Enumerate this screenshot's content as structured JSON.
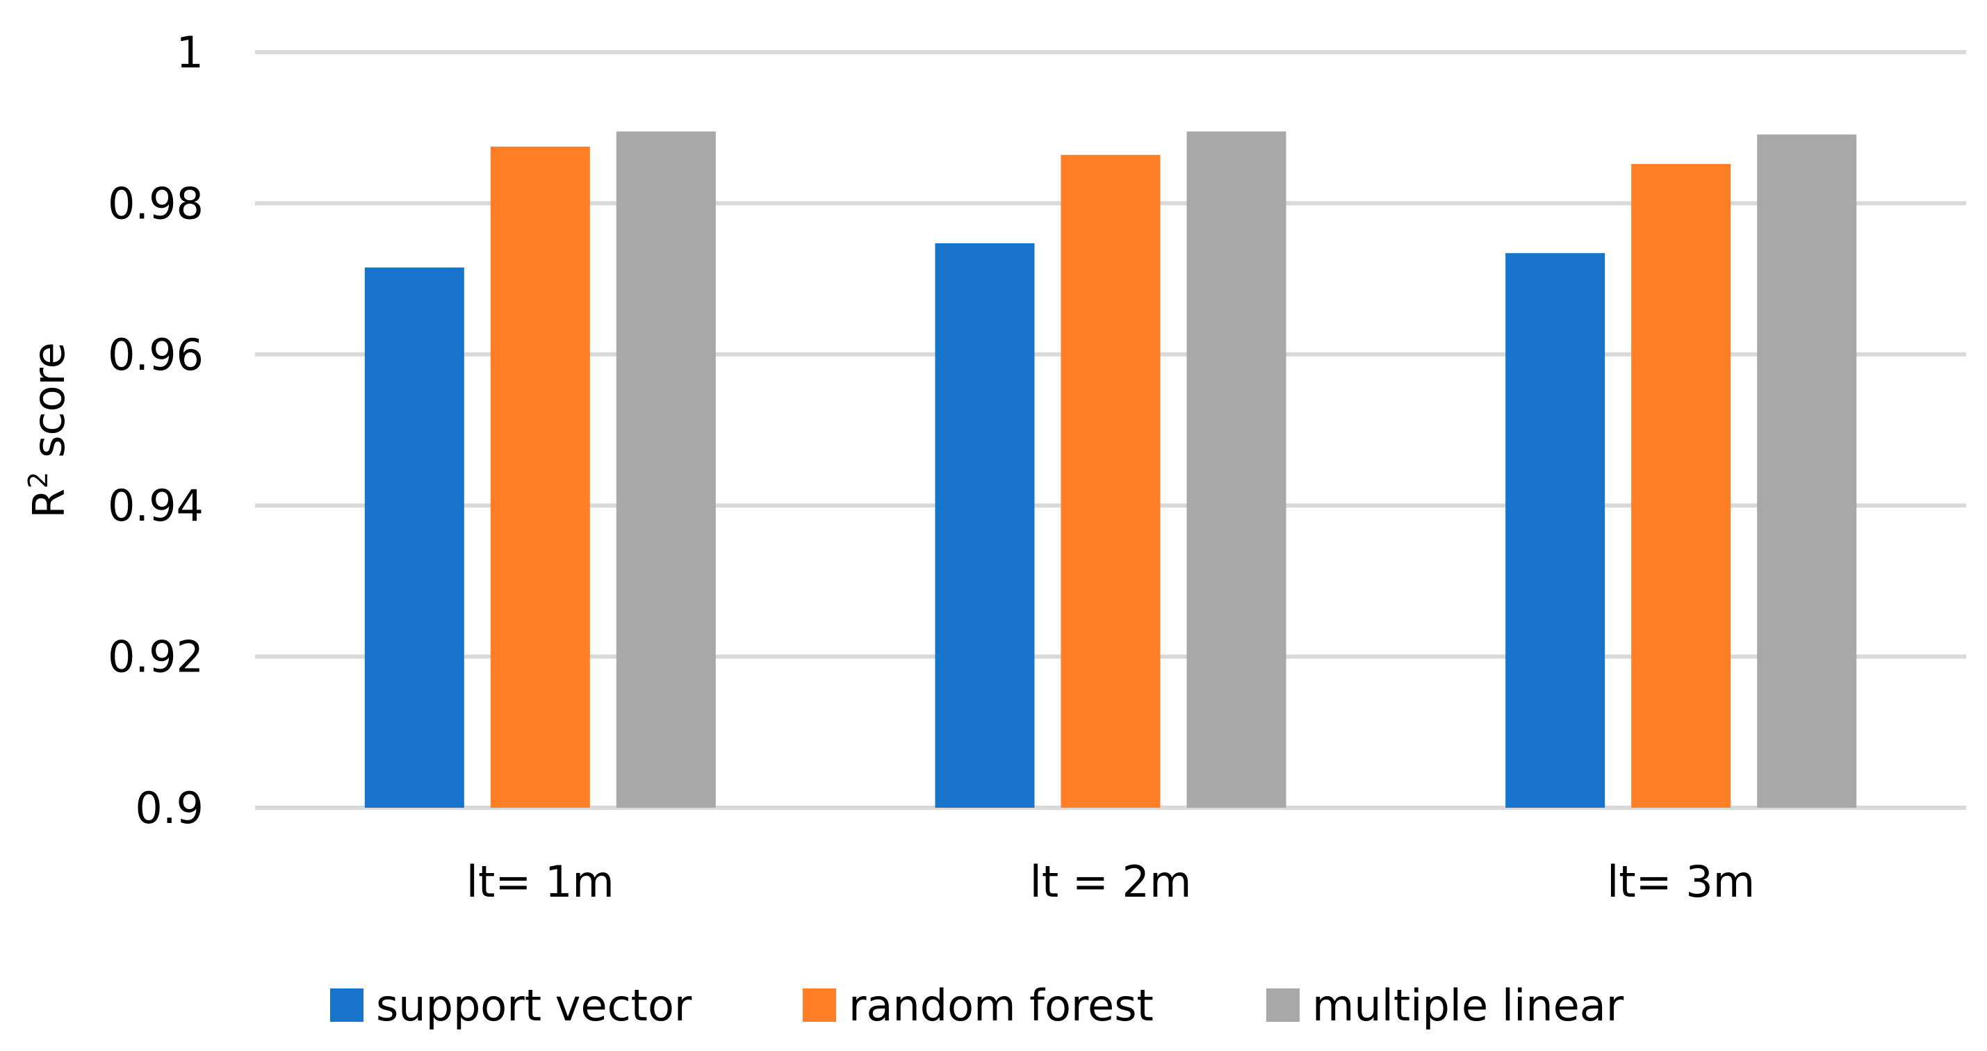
{
  "chart_data": {
    "type": "bar",
    "title": "",
    "xlabel": "",
    "ylabel": "R",
    "ylabel_superscript": "2",
    "ylabel_suffix": " score",
    "ylim": [
      0.9,
      1.0
    ],
    "yticks": [
      "0.9",
      "0.92",
      "0.94",
      "0.96",
      "0.98",
      "1"
    ],
    "grid": true,
    "legend_position": "bottom",
    "categories": [
      "lt= 1m",
      "lt = 2m",
      "lt= 3m"
    ],
    "series": [
      {
        "name": "support vector",
        "color": "#1874CA",
        "values": [
          0.9715,
          0.9747,
          0.9734
        ]
      },
      {
        "name": "random forest",
        "color": "#FF7E26",
        "values": [
          0.9875,
          0.9864,
          0.9852
        ]
      },
      {
        "name": "multiple linear",
        "color": "#A8A8A8",
        "values": [
          0.9895,
          0.9895,
          0.9891
        ]
      }
    ]
  }
}
